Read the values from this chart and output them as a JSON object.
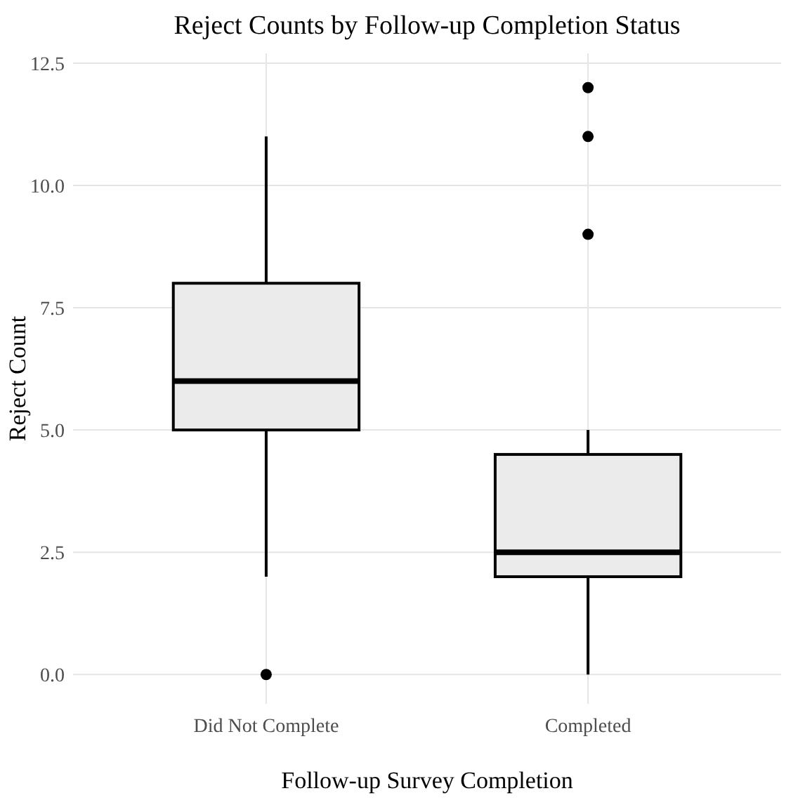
{
  "chart_data": {
    "type": "box",
    "title": "Reject Counts by Follow-up Completion Status",
    "xlabel": "Follow-up Survey Completion",
    "ylabel": "Reject Count",
    "categories": [
      "Did Not Complete",
      "Completed"
    ],
    "boxes": [
      {
        "low": 2,
        "q1": 5,
        "median": 6,
        "q3": 8,
        "high": 11,
        "outliers": [
          0
        ]
      },
      {
        "low": 0,
        "q1": 2,
        "median": 2.5,
        "q3": 4.5,
        "high": 5,
        "outliers": [
          9,
          11,
          12
        ]
      }
    ],
    "color": "#ebebeb",
    "ylim": [
      -0.6,
      12.7
    ],
    "yticks": [
      {
        "value": 0,
        "label": "0.0"
      },
      {
        "value": 2.5,
        "label": "2.5"
      },
      {
        "value": 5,
        "label": "5.0"
      },
      {
        "value": 7.5,
        "label": "7.5"
      },
      {
        "value": 10,
        "label": "10.0"
      },
      {
        "value": 12.5,
        "label": "12.5"
      }
    ],
    "grid": true
  }
}
